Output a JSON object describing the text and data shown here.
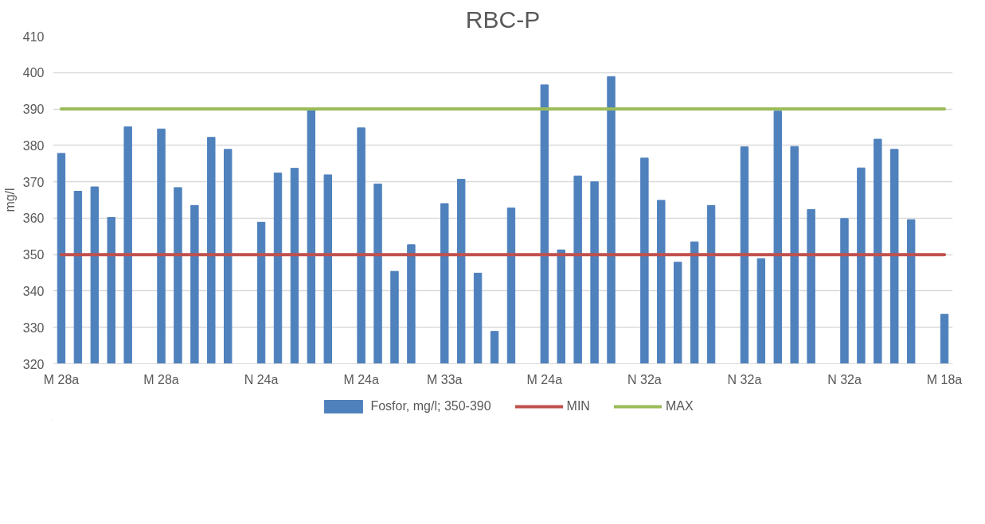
{
  "chart_data": {
    "type": "bar",
    "title": "RBC-P",
    "ylabel": "mg/l",
    "categories": [
      "M 28a",
      null,
      null,
      null,
      null,
      null,
      "M 28a",
      null,
      null,
      null,
      null,
      null,
      "N 24a",
      null,
      null,
      null,
      null,
      null,
      "M 24a",
      null,
      null,
      null,
      null,
      "M 33a",
      null,
      null,
      null,
      null,
      null,
      "M 24a",
      null,
      null,
      null,
      null,
      null,
      "N 32a",
      null,
      null,
      null,
      null,
      null,
      "N 32a",
      null,
      null,
      null,
      null,
      null,
      "N 32a",
      null,
      null,
      null,
      null,
      null,
      "M 18a"
    ],
    "series": [
      {
        "name": "Fosfor, mg/l; 350-390",
        "color": "#4f81bd",
        "values": [
          377.8,
          367.4,
          368.6,
          360.2,
          385.1,
          null,
          384.5,
          368.4,
          363.5,
          382.2,
          378.9,
          null,
          358.9,
          372.4,
          373.7,
          389.6,
          371.9,
          null,
          384.8,
          369.4,
          345.4,
          352.7,
          null,
          364.0,
          370.7,
          344.9,
          328.9,
          362.8,
          null,
          396.6,
          351.3,
          371.6,
          370.0,
          398.9,
          null,
          376.5,
          364.9,
          347.9,
          353.5,
          363.5,
          null,
          379.6,
          348.9,
          389.4,
          379.7,
          362.4,
          null,
          359.9,
          373.8,
          381.7,
          378.9,
          359.6,
          null,
          333.6
        ]
      },
      {
        "name": "MIN",
        "color": "#c0504d",
        "type": "line",
        "values": [
          350,
          350,
          350,
          350,
          350,
          350,
          350,
          350,
          350,
          350,
          350,
          350,
          350,
          350,
          350,
          350,
          350,
          350,
          350,
          350,
          350,
          350,
          350,
          350,
          350,
          350,
          350,
          350,
          350,
          350,
          350,
          350,
          350,
          350,
          350,
          350,
          350,
          350,
          350,
          350,
          350,
          350,
          350,
          350,
          350,
          350,
          350,
          350,
          350,
          350,
          350,
          350,
          350,
          350
        ]
      },
      {
        "name": "MAX",
        "color": "#9bbb59",
        "type": "line",
        "values": [
          390,
          390,
          390,
          390,
          390,
          390,
          390,
          390,
          390,
          390,
          390,
          390,
          390,
          390,
          390,
          390,
          390,
          390,
          390,
          390,
          390,
          390,
          390,
          390,
          390,
          390,
          390,
          390,
          390,
          390,
          390,
          390,
          390,
          390,
          390,
          390,
          390,
          390,
          390,
          390,
          390,
          390,
          390,
          390,
          390,
          390,
          390,
          390,
          390,
          390,
          390,
          390,
          390,
          390
        ]
      }
    ],
    "ylim": [
      320,
      410
    ],
    "yticks": [
      320,
      330,
      340,
      350,
      360,
      370,
      380,
      390,
      400,
      410
    ],
    "grid": "y",
    "legend": "bottom",
    "marker": "none",
    "line_style": "solid"
  }
}
